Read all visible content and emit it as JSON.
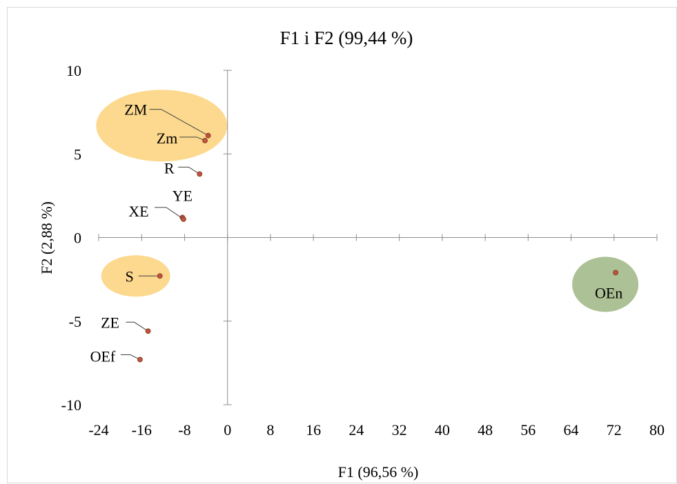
{
  "chart_data": {
    "type": "scatter",
    "title": "F1 i F2 (99,44 %)",
    "xlabel": "F1 (96,56 %)",
    "ylabel": "F2 (2,88 %)",
    "xlim": [
      -24,
      80
    ],
    "ylim": [
      -10,
      10
    ],
    "x_ticks": [
      -24,
      -16,
      -8,
      0,
      8,
      16,
      24,
      32,
      40,
      48,
      56,
      64,
      72,
      80
    ],
    "y_ticks": [
      -10,
      -5,
      0,
      5,
      10
    ],
    "grid": false,
    "point_color": "#c0504d",
    "points": [
      {
        "label": "ZM",
        "x": -3.6,
        "y": 6.1
      },
      {
        "label": "Zm",
        "x": -4.2,
        "y": 5.8
      },
      {
        "label": "R",
        "x": -5.2,
        "y": 3.8
      },
      {
        "label": "YE",
        "x": -8.4,
        "y": 1.2
      },
      {
        "label": "XE",
        "x": -8.2,
        "y": 1.1
      },
      {
        "label": "S",
        "x": -12.6,
        "y": -2.3
      },
      {
        "label": "ZE",
        "x": -14.8,
        "y": -5.6
      },
      {
        "label": "OEf",
        "x": -16.3,
        "y": -7.3
      },
      {
        "label": "OEn",
        "x": 72.3,
        "y": -2.1
      }
    ],
    "highlights": [
      {
        "color": "#fcd27a",
        "members": [
          "ZM",
          "Zm"
        ]
      },
      {
        "color": "#fcd27a",
        "members": [
          "S"
        ]
      },
      {
        "color": "#9db682",
        "members": [
          "OEn"
        ]
      }
    ]
  }
}
